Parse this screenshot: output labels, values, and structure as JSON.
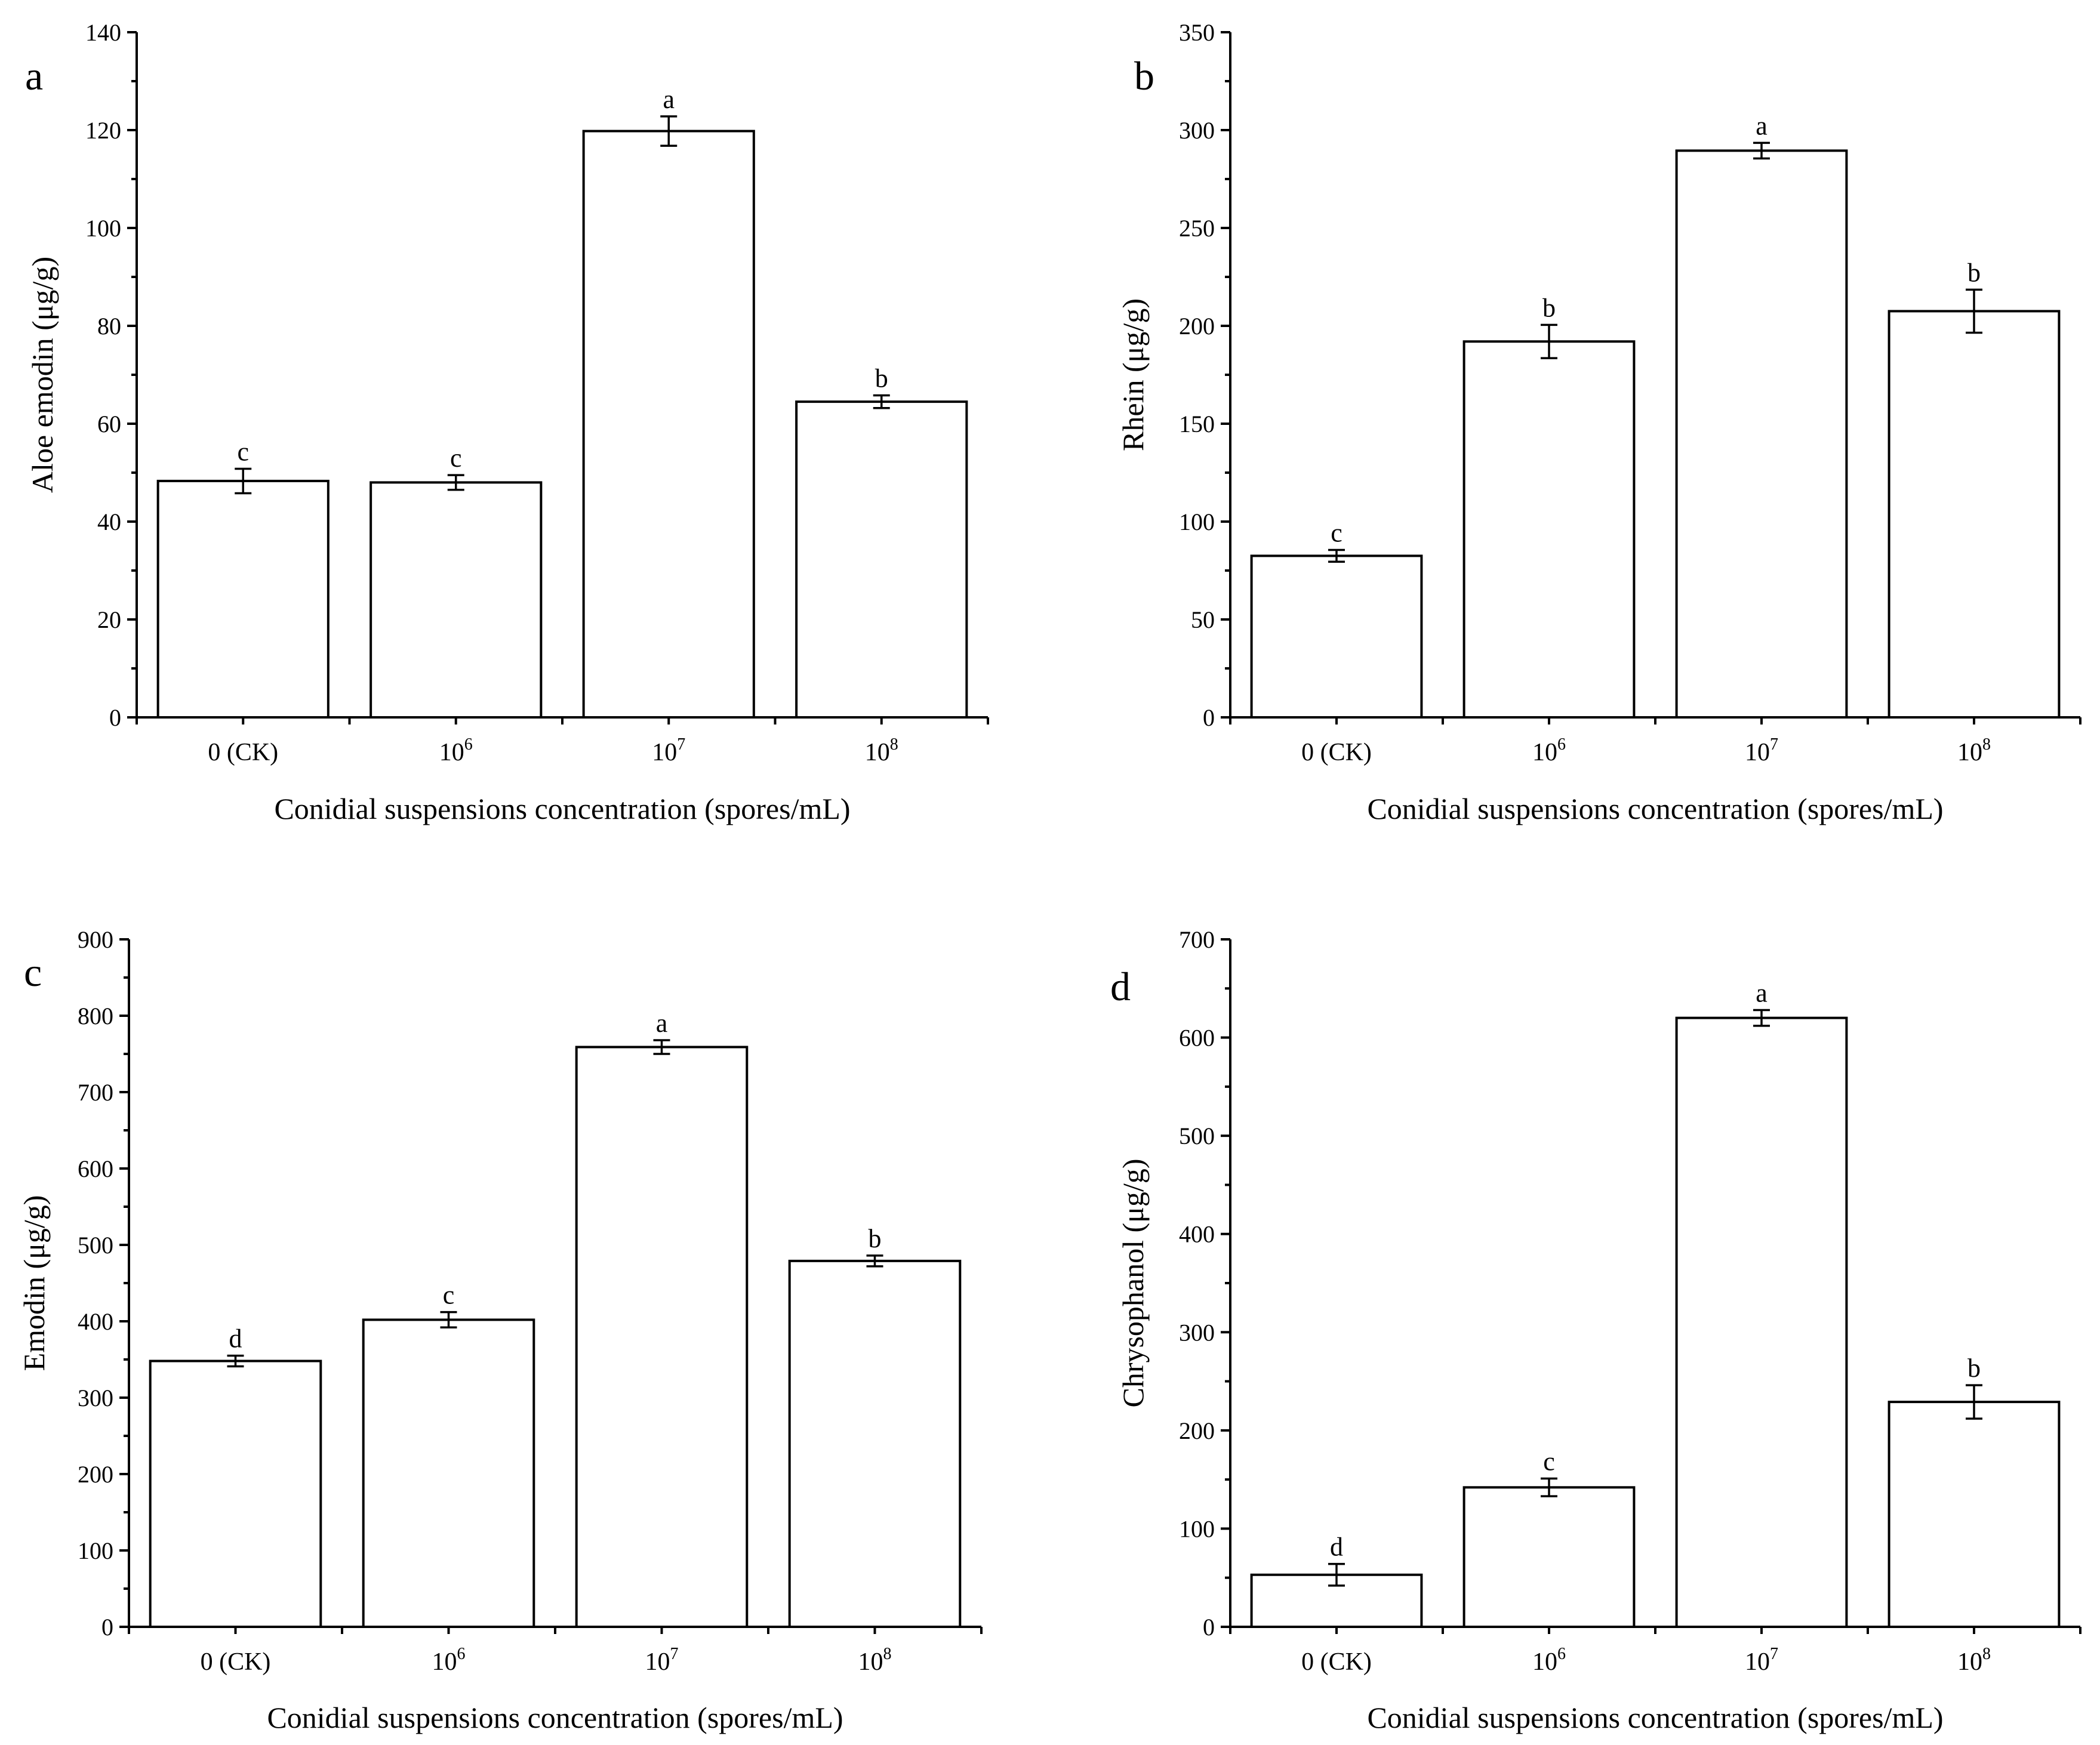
{
  "figure": {
    "x_axis_title": "Conidial suspensions concentration (spores/mL)"
  },
  "chart_data": [
    {
      "panel": "a",
      "type": "bar",
      "ylabel": "Aloe emodin (μg/g)",
      "xlabel": "Conidial suspensions concentration (spores/mL)",
      "categories": [
        {
          "base": "0 (CK)",
          "exp": ""
        },
        {
          "base": "10",
          "exp": "6"
        },
        {
          "base": "10",
          "exp": "7"
        },
        {
          "base": "10",
          "exp": "8"
        }
      ],
      "values": [
        48.3,
        48.0,
        119.8,
        64.5
      ],
      "errors": [
        2.5,
        1.5,
        3.0,
        1.3
      ],
      "significance": [
        "c",
        "c",
        "a",
        "b"
      ],
      "ylim": [
        0,
        140
      ],
      "yticks": [
        0,
        20,
        40,
        60,
        80,
        100,
        120,
        140
      ]
    },
    {
      "panel": "b",
      "type": "bar",
      "ylabel": "Rhein (μg/g)",
      "xlabel": "Conidial suspensions concentration (spores/mL)",
      "categories": [
        {
          "base": "0 (CK)",
          "exp": ""
        },
        {
          "base": "10",
          "exp": "6"
        },
        {
          "base": "10",
          "exp": "7"
        },
        {
          "base": "10",
          "exp": "8"
        }
      ],
      "values": [
        82.5,
        192.0,
        289.5,
        207.5
      ],
      "errors": [
        3.0,
        8.5,
        4.0,
        11.0
      ],
      "significance": [
        "c",
        "b",
        "a",
        "b"
      ],
      "ylim": [
        0,
        350
      ],
      "yticks": [
        0,
        50,
        100,
        150,
        200,
        250,
        300,
        350
      ]
    },
    {
      "panel": "c",
      "type": "bar",
      "ylabel": "Emodin (μg/g)",
      "xlabel": "Conidial suspensions concentration (spores/mL)",
      "categories": [
        {
          "base": "0 (CK)",
          "exp": ""
        },
        {
          "base": "10",
          "exp": "6"
        },
        {
          "base": "10",
          "exp": "7"
        },
        {
          "base": "10",
          "exp": "8"
        }
      ],
      "values": [
        348.0,
        402.0,
        759.0,
        479.0
      ],
      "errors": [
        7.0,
        10.0,
        9.0,
        7.0
      ],
      "significance": [
        "d",
        "c",
        "a",
        "b"
      ],
      "ylim": [
        0,
        900
      ],
      "yticks": [
        0,
        100,
        200,
        300,
        400,
        500,
        600,
        700,
        800,
        900
      ]
    },
    {
      "panel": "d",
      "type": "bar",
      "ylabel": "Chrysophanol (μg/g)",
      "xlabel": "Conidial suspensions concentration (spores/mL)",
      "categories": [
        {
          "base": "0 (CK)",
          "exp": ""
        },
        {
          "base": "10",
          "exp": "6"
        },
        {
          "base": "10",
          "exp": "7"
        },
        {
          "base": "10",
          "exp": "8"
        }
      ],
      "values": [
        53.0,
        142.0,
        620.0,
        229.0
      ],
      "errors": [
        11.0,
        9.0,
        8.0,
        17.0
      ],
      "significance": [
        "d",
        "c",
        "a",
        "b"
      ],
      "ylim": [
        0,
        700
      ],
      "yticks": [
        0,
        100,
        200,
        300,
        400,
        500,
        600,
        700
      ]
    }
  ]
}
